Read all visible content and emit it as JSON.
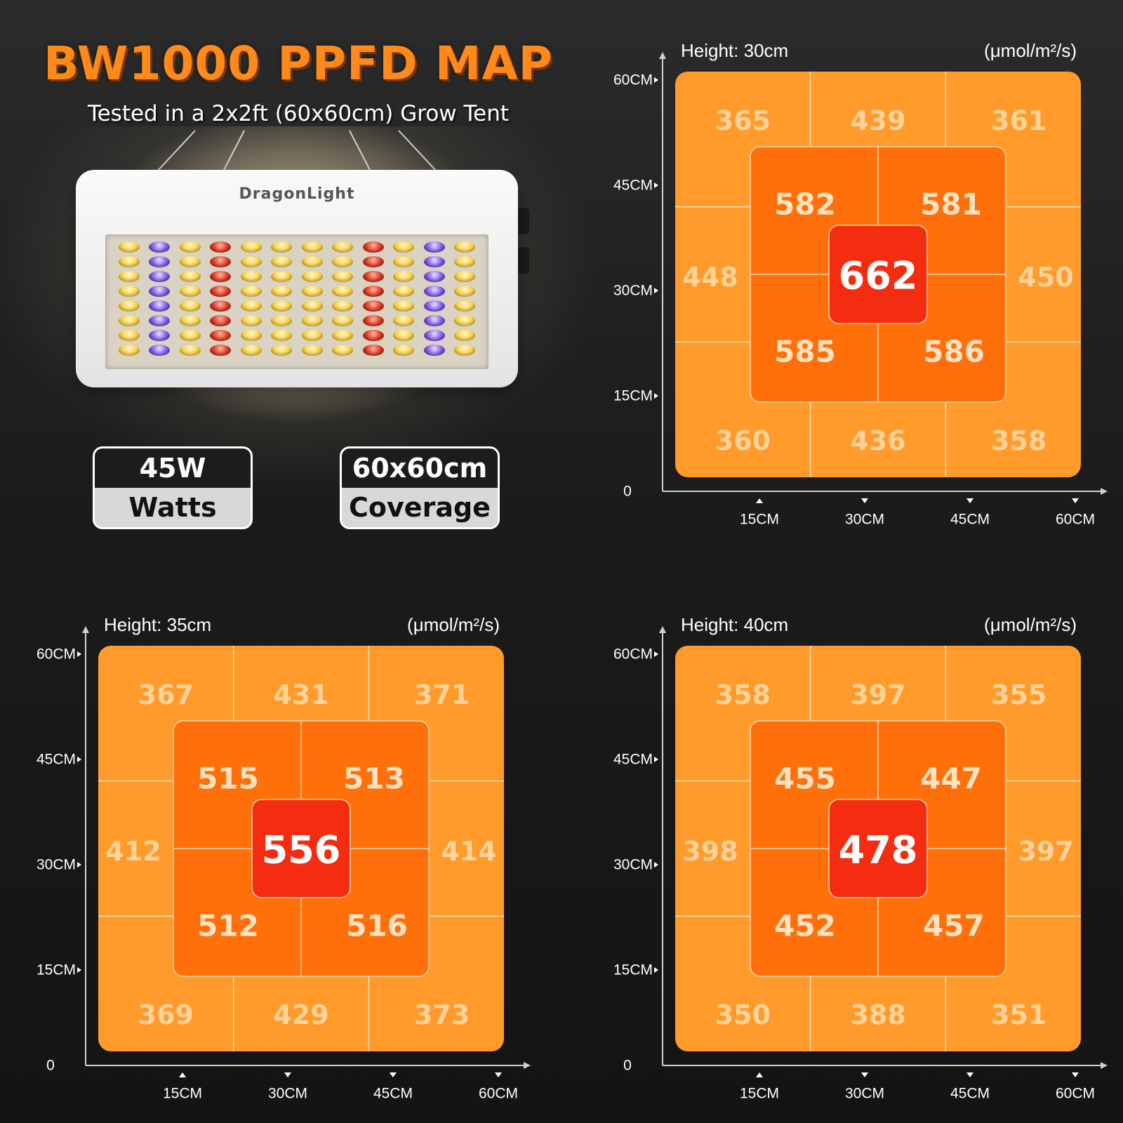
{
  "header": {
    "title": "BW1000 PPFD MAP",
    "subtitle": "Tested in a 2x2ft (60x60cm) Grow Tent"
  },
  "lamp": {
    "brand": "DragonLight"
  },
  "badges": [
    {
      "value": "45W",
      "label": "Watts"
    },
    {
      "value": "60x60cm",
      "label": "Coverage"
    }
  ],
  "colors": {
    "outer_zone": "#ff9a2b",
    "inner_zone": "#ff6f0a",
    "center_zone": "#f42d10",
    "title_orange": "#ff8a1a",
    "background": "#1b1b1b"
  },
  "chart_data": [
    {
      "type": "heatmap",
      "title": "Height: 30cm",
      "unit": "(μmol/m²/s)",
      "x_ticks": [
        "15CM",
        "30CM",
        "45CM",
        "60CM"
      ],
      "y_ticks": [
        "60CM",
        "45CM",
        "30CM",
        "15CM"
      ],
      "origin": "0",
      "outer": {
        "tl": 365,
        "tm": 439,
        "tr": 361,
        "ml": 448,
        "mr": 450,
        "bl": 360,
        "bm": 436,
        "br": 358
      },
      "inner": {
        "tl": 582,
        "tr": 581,
        "bl": 585,
        "br": 586
      },
      "center": 662
    },
    {
      "type": "heatmap",
      "title": "Height: 35cm",
      "unit": "(μmol/m²/s)",
      "x_ticks": [
        "15CM",
        "30CM",
        "45CM",
        "60CM"
      ],
      "y_ticks": [
        "60CM",
        "45CM",
        "30CM",
        "15CM"
      ],
      "origin": "0",
      "outer": {
        "tl": 367,
        "tm": 431,
        "tr": 371,
        "ml": 412,
        "mr": 414,
        "bl": 369,
        "bm": 429,
        "br": 373
      },
      "inner": {
        "tl": 515,
        "tr": 513,
        "bl": 512,
        "br": 516
      },
      "center": 556
    },
    {
      "type": "heatmap",
      "title": "Height: 40cm",
      "unit": "(μmol/m²/s)",
      "x_ticks": [
        "15CM",
        "30CM",
        "45CM",
        "60CM"
      ],
      "y_ticks": [
        "60CM",
        "45CM",
        "30CM",
        "15CM"
      ],
      "origin": "0",
      "outer": {
        "tl": 358,
        "tm": 397,
        "tr": 355,
        "ml": 398,
        "mr": 397,
        "bl": 350,
        "bm": 388,
        "br": 351
      },
      "inner": {
        "tl": 455,
        "tr": 447,
        "bl": 452,
        "br": 457
      },
      "center": 478
    }
  ]
}
